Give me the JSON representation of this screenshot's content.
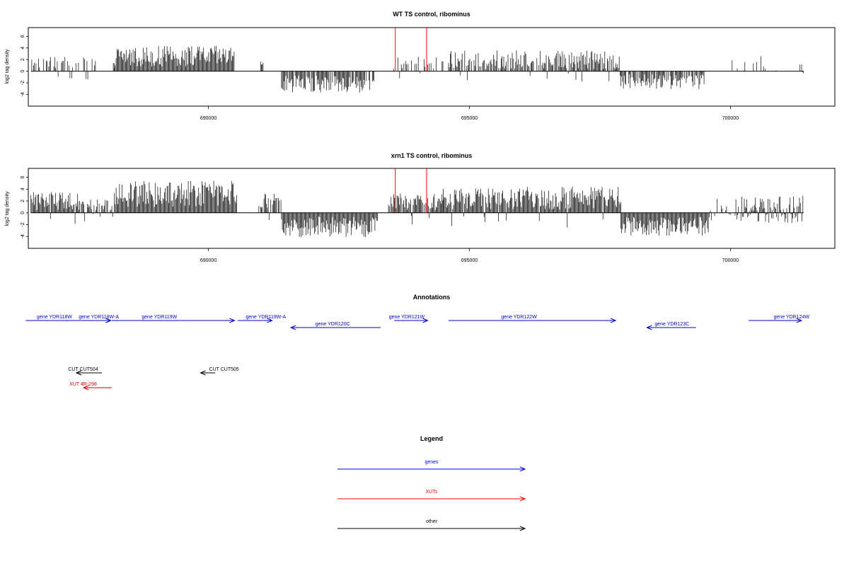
{
  "chart_data": [
    {
      "type": "bar",
      "title": "WT TS control, ribominus",
      "ylabel": "log2 tag density",
      "xlim": [
        686550,
        702000
      ],
      "ylim": [
        -6,
        7.5
      ],
      "xticks": [
        690000,
        695000,
        700000
      ],
      "yticks": [
        -4,
        -2,
        0,
        2,
        4,
        6
      ],
      "segments": [
        {
          "start": 686600,
          "end": 687300,
          "mean": 1.5,
          "sd": 0.6,
          "dens": 0.4,
          "neg": 0.05
        },
        {
          "start": 687300,
          "end": 688200,
          "mean": 1.5,
          "sd": 0.6,
          "dens": 0.35,
          "neg": 0.08
        },
        {
          "start": 688200,
          "end": 690500,
          "mean": 2.6,
          "sd": 1.1,
          "dens": 1.0,
          "neg": 0.0
        },
        {
          "start": 691000,
          "end": 691050,
          "mean": 1.4,
          "sd": 0.2,
          "dens": 0.6,
          "neg": 0.0
        },
        {
          "start": 691400,
          "end": 693200,
          "mean": -2.2,
          "sd": 0.9,
          "dens": 0.9,
          "neg": 1.0
        },
        {
          "start": 693500,
          "end": 694600,
          "mean": 1.4,
          "sd": 0.7,
          "dens": 0.3,
          "neg": 0.05
        },
        {
          "start": 694600,
          "end": 697900,
          "mean": 2.0,
          "sd": 1.0,
          "dens": 0.75,
          "neg": 0.05
        },
        {
          "start": 697900,
          "end": 699500,
          "mean": -1.8,
          "sd": 0.8,
          "dens": 0.8,
          "neg": 1.0
        },
        {
          "start": 700000,
          "end": 701000,
          "mean": 1.4,
          "sd": 0.8,
          "dens": 0.15,
          "neg": 0.2
        },
        {
          "start": 701300,
          "end": 701400,
          "mean": 0.8,
          "sd": 0.4,
          "dens": 0.3,
          "neg": 0.5
        }
      ],
      "red_marks": [
        693580,
        694180
      ],
      "red_height": 7.5
    },
    {
      "type": "bar",
      "title": "xrn1 TS control, ribominus",
      "ylabel": "log2 tag density",
      "xlim": [
        686550,
        702000
      ],
      "ylim": [
        -6,
        7.5
      ],
      "xticks": [
        690000,
        695000,
        700000
      ],
      "yticks": [
        -4,
        -2,
        0,
        2,
        4,
        6
      ],
      "segments": [
        {
          "start": 686600,
          "end": 687500,
          "mean": 2.0,
          "sd": 1.0,
          "dens": 1.0,
          "neg": 0.08
        },
        {
          "start": 687500,
          "end": 688200,
          "mean": 1.4,
          "sd": 0.7,
          "dens": 0.7,
          "neg": 0.08
        },
        {
          "start": 688200,
          "end": 690550,
          "mean": 3.2,
          "sd": 1.4,
          "dens": 1.0,
          "neg": 0.0
        },
        {
          "start": 690950,
          "end": 691400,
          "mean": 1.8,
          "sd": 0.9,
          "dens": 0.8,
          "neg": 0.05
        },
        {
          "start": 691400,
          "end": 693250,
          "mean": -2.4,
          "sd": 1.1,
          "dens": 1.0,
          "neg": 1.0
        },
        {
          "start": 693450,
          "end": 694500,
          "mean": 1.8,
          "sd": 0.9,
          "dens": 0.9,
          "neg": 0.05
        },
        {
          "start": 694500,
          "end": 697900,
          "mean": 2.5,
          "sd": 1.2,
          "dens": 1.0,
          "neg": 0.03
        },
        {
          "start": 697900,
          "end": 699600,
          "mean": -2.3,
          "sd": 1.0,
          "dens": 1.0,
          "neg": 1.0
        },
        {
          "start": 699600,
          "end": 700200,
          "mean": 1.3,
          "sd": 0.7,
          "dens": 0.5,
          "neg": 0.5
        },
        {
          "start": 700200,
          "end": 701400,
          "mean": 1.6,
          "sd": 0.8,
          "dens": 0.9,
          "neg": 0.45
        }
      ],
      "red_marks": [
        693580,
        694180
      ],
      "red_height": 7.5
    }
  ],
  "annotations": {
    "title": "Annotations",
    "features": [
      {
        "label": "gene YDR118W",
        "start": 686500,
        "end": 688130,
        "strand": "+",
        "row": 0,
        "label_at": 687050,
        "color": "#0000cc"
      },
      {
        "label": "gene YDR118W-A",
        "start": 687000,
        "end": 688130,
        "strand": "+",
        "row": 0,
        "label_at": 687900,
        "color": "#0000cc"
      },
      {
        "label": "gene YDR119W",
        "start": 688150,
        "end": 690500,
        "strand": "+",
        "row": 0,
        "label_at": 689060,
        "color": "#0000cc"
      },
      {
        "label": "gene YDR119W-A",
        "start": 690560,
        "end": 691220,
        "strand": "+",
        "row": 0,
        "label_at": 691100,
        "color": "#0000cc"
      },
      {
        "label": "gene YDR120C",
        "start": 691580,
        "end": 693300,
        "strand": "-",
        "row": 1,
        "label_at": 692380,
        "color": "#0000cc"
      },
      {
        "label": "gene YDR121W",
        "start": 693560,
        "end": 694200,
        "strand": "+",
        "row": 0,
        "label_at": 693800,
        "color": "#0000cc"
      },
      {
        "label": "gene YDR122W",
        "start": 694600,
        "end": 697800,
        "strand": "+",
        "row": 0,
        "label_at": 695950,
        "color": "#0000cc"
      },
      {
        "label": "gene YDR123C",
        "start": 698400,
        "end": 699340,
        "strand": "-",
        "row": 1,
        "label_at": 698880,
        "color": "#0000cc"
      },
      {
        "label": "gene YDR124W",
        "start": 700350,
        "end": 701360,
        "strand": "+",
        "row": 0,
        "label_at": 701170,
        "color": "#0000cc"
      },
      {
        "label": "CUT CUT504",
        "start": 687470,
        "end": 687960,
        "strand": "-",
        "row": 3,
        "label_at": 687600,
        "color": "#000000"
      },
      {
        "label": "CUT CUT505",
        "start": 689850,
        "end": 690130,
        "strand": "-",
        "row": 3,
        "label_at": 690300,
        "color": "#000000"
      },
      {
        "label": "XUT 4R-298",
        "start": 687610,
        "end": 688150,
        "strand": "-",
        "row": 4,
        "label_at": 687600,
        "color": "#cc0000"
      }
    ]
  },
  "legend": {
    "title": "Legend",
    "items": [
      {
        "label": "genes",
        "color": "#0000ff"
      },
      {
        "label": "XUTs",
        "color": "#ff0000"
      },
      {
        "label": "other",
        "color": "#000000"
      }
    ]
  }
}
